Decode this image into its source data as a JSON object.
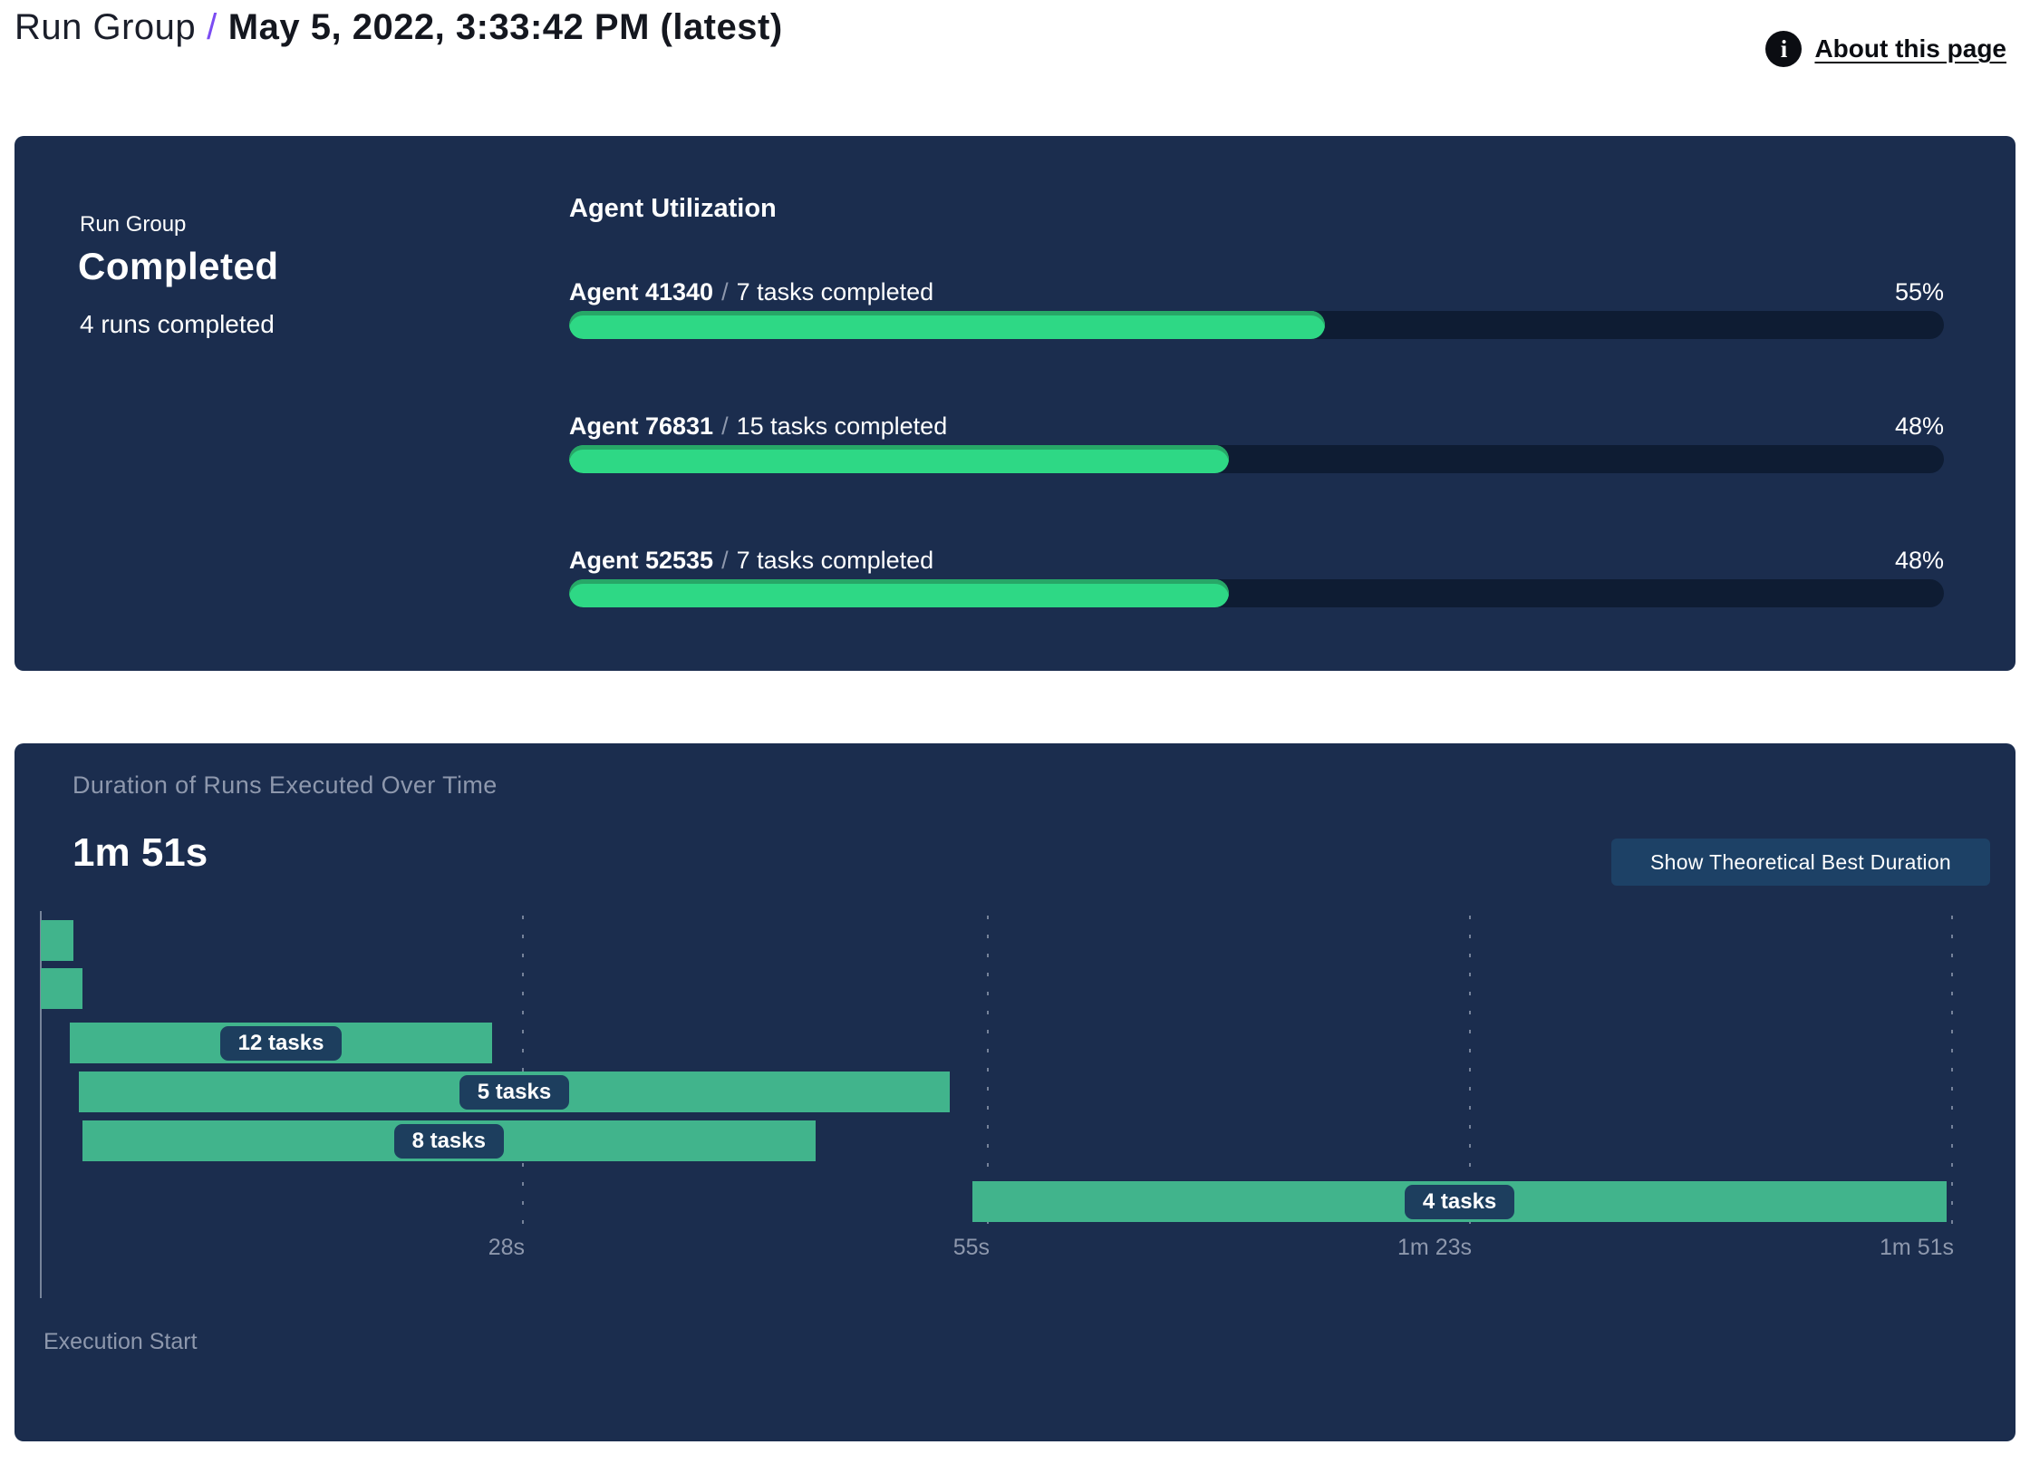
{
  "header": {
    "breadcrumb": "Run Group",
    "separator": "/",
    "title": "May 5, 2022, 3:33:42 PM (latest)",
    "info_icon_glyph": "i",
    "about_link": "About this page"
  },
  "colors": {
    "panel_bg": "#1b2d4e",
    "accent_purple": "#7b4cf2",
    "progress_fill": "#2ed885",
    "progress_fill_edge": "#27a767",
    "progress_track": "#0e1c33",
    "gantt_bar": "#41b48c",
    "pill_bg": "#1d3e5e",
    "button_bg": "#1d4166",
    "muted_text": "#8e98ad"
  },
  "summary": {
    "label": "Run Group",
    "status": "Completed",
    "runs_text": "4 runs completed"
  },
  "agent_utilization": {
    "title": "Agent Utilization",
    "separator": "/",
    "agents": [
      {
        "name": "Agent 41340",
        "tasks": "7 tasks completed",
        "percent": 55,
        "percent_label": "55%"
      },
      {
        "name": "Agent 76831",
        "tasks": "15 tasks completed",
        "percent": 48,
        "percent_label": "48%"
      },
      {
        "name": "Agent 52535",
        "tasks": "7 tasks completed",
        "percent": 48,
        "percent_label": "48%"
      }
    ]
  },
  "chart_data": {
    "type": "gantt",
    "title": "Duration of Runs Executed Over Time",
    "total_duration_label": "1m 51s",
    "button_label": "Show Theoretical Best Duration",
    "x_axis_label": "Execution Start",
    "x_unit": "seconds",
    "x_range_seconds": [
      0,
      113
    ],
    "x_ticks": [
      {
        "label": "28s",
        "seconds": 28
      },
      {
        "label": "55s",
        "seconds": 55
      },
      {
        "label": "1m 23s",
        "seconds": 83
      },
      {
        "label": "1m 51s",
        "seconds": 111
      }
    ],
    "bars": [
      {
        "start_s": 0,
        "end_s": 1.9,
        "label": ""
      },
      {
        "start_s": 0,
        "end_s": 2.4,
        "label": ""
      },
      {
        "start_s": 1.7,
        "end_s": 26.2,
        "label": "12 tasks"
      },
      {
        "start_s": 2.2,
        "end_s": 52.8,
        "label": "5 tasks"
      },
      {
        "start_s": 2.4,
        "end_s": 45.0,
        "label": "8 tasks"
      },
      {
        "start_s": 54.1,
        "end_s": 110.7,
        "label": "4 tasks"
      }
    ]
  }
}
